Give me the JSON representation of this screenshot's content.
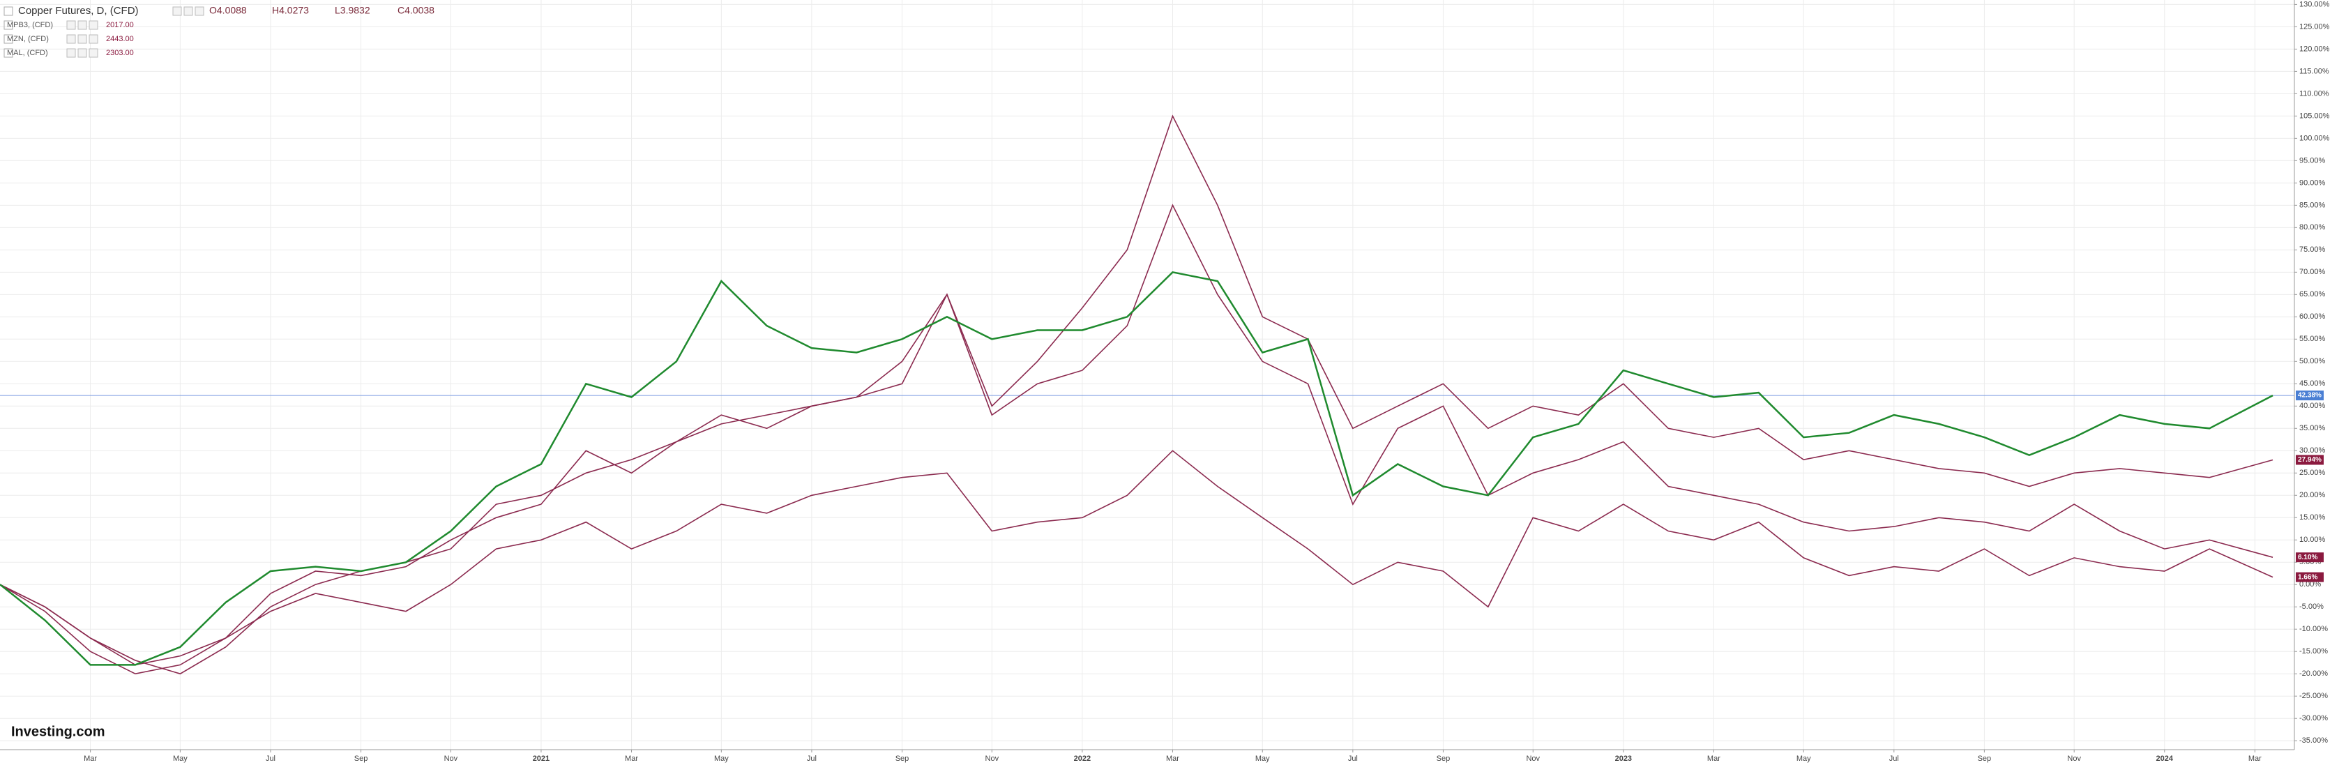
{
  "chart_data": {
    "type": "line",
    "logo": "Investing.com",
    "grid": true,
    "x": [
      2020,
      2020.083,
      2020.167,
      2020.25,
      2020.333,
      2020.417,
      2020.5,
      2020.583,
      2020.667,
      2020.75,
      2020.833,
      2020.917,
      2021,
      2021.083,
      2021.167,
      2021.25,
      2021.333,
      2021.417,
      2021.5,
      2021.583,
      2021.667,
      2021.75,
      2021.833,
      2021.917,
      2022,
      2022.083,
      2022.167,
      2022.25,
      2022.333,
      2022.417,
      2022.5,
      2022.583,
      2022.667,
      2022.75,
      2022.833,
      2022.917,
      2023,
      2023.083,
      2023.167,
      2023.25,
      2023.333,
      2023.417,
      2023.5,
      2023.583,
      2023.667,
      2023.75,
      2023.833,
      2023.917,
      2024,
      2024.083,
      2024.2
    ],
    "xlim": [
      2020,
      2024.24
    ],
    "xticks": [
      {
        "value": 2020.167,
        "label": "Mar"
      },
      {
        "value": 2020.333,
        "label": "May"
      },
      {
        "value": 2020.5,
        "label": "Jul"
      },
      {
        "value": 2020.667,
        "label": "Sep"
      },
      {
        "value": 2020.833,
        "label": "Nov"
      },
      2021,
      {
        "value": 2021.167,
        "label": "Mar"
      },
      {
        "value": 2021.333,
        "label": "May"
      },
      {
        "value": 2021.5,
        "label": "Jul"
      },
      {
        "value": 2021.667,
        "label": "Sep"
      },
      {
        "value": 2021.833,
        "label": "Nov"
      },
      2022,
      {
        "value": 2022.167,
        "label": "Mar"
      },
      {
        "value": 2022.333,
        "label": "May"
      },
      {
        "value": 2022.5,
        "label": "Jul"
      },
      {
        "value": 2022.667,
        "label": "Sep"
      },
      {
        "value": 2022.833,
        "label": "Nov"
      },
      2023,
      {
        "value": 2023.167,
        "label": "Mar"
      },
      {
        "value": 2023.333,
        "label": "May"
      },
      {
        "value": 2023.5,
        "label": "Jul"
      },
      {
        "value": 2023.667,
        "label": "Sep"
      },
      {
        "value": 2023.833,
        "label": "Nov"
      },
      2024,
      {
        "value": 2024.167,
        "label": "Mar"
      }
    ],
    "ylim": [
      -37,
      131
    ],
    "yticks": [
      {
        "value": 130,
        "label": "130.00%"
      },
      {
        "value": 125,
        "label": "125.00%"
      },
      {
        "value": 120,
        "label": "120.00%"
      },
      {
        "value": 115,
        "label": "115.00%"
      },
      {
        "value": 110,
        "label": "110.00%"
      },
      {
        "value": 105,
        "label": "105.00%"
      },
      {
        "value": 100,
        "label": "100.00%"
      },
      {
        "value": 95,
        "label": "95.00%"
      },
      {
        "value": 90,
        "label": "90.00%"
      },
      {
        "value": 85,
        "label": "85.00%"
      },
      {
        "value": 80,
        "label": "80.00%"
      },
      {
        "value": 75,
        "label": "75.00%"
      },
      {
        "value": 70,
        "label": "70.00%"
      },
      {
        "value": 65,
        "label": "65.00%"
      },
      {
        "value": 60,
        "label": "60.00%"
      },
      {
        "value": 55,
        "label": "55.00%"
      },
      {
        "value": 50,
        "label": "50.00%"
      },
      {
        "value": 45,
        "label": "45.00%"
      },
      {
        "value": 40,
        "label": "40.00%"
      },
      {
        "value": 35,
        "label": "35.00%"
      },
      {
        "value": 30,
        "label": "30.00%"
      },
      {
        "value": 25,
        "label": "25.00%"
      },
      {
        "value": 20,
        "label": "20.00%"
      },
      {
        "value": 15,
        "label": "15.00%"
      },
      {
        "value": 10,
        "label": "10.00%"
      },
      {
        "value": 5,
        "label": "5.00%"
      },
      {
        "value": 0,
        "label": "0.00%"
      },
      {
        "value": -5,
        "label": "-5.00%"
      },
      {
        "value": -10,
        "label": "-10.00%"
      },
      {
        "value": -15,
        "label": "-15.00%"
      },
      {
        "value": -20,
        "label": "-20.00%"
      },
      {
        "value": -25,
        "label": "-25.00%"
      },
      {
        "value": -30,
        "label": "-30.00%"
      },
      {
        "value": -35,
        "label": "-35.00%"
      }
    ],
    "series": [
      {
        "name": "Copper Futures, D, (CFD)",
        "color": "#1f8a2e",
        "end_color": "#4a7fd4",
        "legend_values": [
          "O4.0088",
          "H4.0273",
          "L3.9832",
          "C4.0038"
        ],
        "end_label": "42.38%",
        "values": [
          0,
          -8,
          -18,
          -18,
          -14,
          -4,
          3,
          4,
          3,
          5,
          12,
          22,
          27,
          45,
          42,
          50,
          68,
          58,
          53,
          52,
          55,
          60,
          55,
          57,
          57,
          60,
          70,
          68,
          52,
          55,
          20,
          27,
          22,
          20,
          33,
          36,
          48,
          45,
          42,
          43,
          33,
          34,
          38,
          36,
          33,
          29,
          33,
          38,
          36,
          35,
          42.38
        ]
      },
      {
        "name": "MPB3, (CFD)",
        "color": "#8b2a4f",
        "end_color": "#8b1a3f",
        "legend_values": [
          "2017.00"
        ],
        "end_label": "27.94%",
        "values": [
          0,
          -5,
          -12,
          -17,
          -20,
          -14,
          -5,
          0,
          3,
          5,
          8,
          18,
          20,
          25,
          28,
          32,
          36,
          38,
          40,
          42,
          45,
          65,
          40,
          50,
          62,
          75,
          105,
          85,
          60,
          55,
          35,
          40,
          45,
          35,
          40,
          38,
          45,
          35,
          33,
          35,
          28,
          30,
          28,
          26,
          25,
          22,
          25,
          26,
          25,
          24,
          27.94
        ]
      },
      {
        "name": "MZN, (CFD)",
        "color": "#8b2a4f",
        "end_color": "#8b1a3f",
        "legend_values": [
          "2443.00"
        ],
        "end_label": "6.10%",
        "values": [
          0,
          -6,
          -15,
          -20,
          -18,
          -12,
          -2,
          3,
          2,
          4,
          10,
          15,
          18,
          30,
          25,
          32,
          38,
          35,
          40,
          42,
          50,
          65,
          38,
          45,
          48,
          58,
          85,
          65,
          50,
          45,
          18,
          35,
          40,
          20,
          25,
          28,
          32,
          22,
          20,
          18,
          14,
          12,
          13,
          15,
          14,
          12,
          18,
          12,
          8,
          10,
          6.1
        ]
      },
      {
        "name": "MAL, (CFD)",
        "color": "#8b2a4f",
        "end_color": "#8b1a3f",
        "legend_values": [
          "2303.00"
        ],
        "end_label": "1.66%",
        "values": [
          0,
          -5,
          -12,
          -18,
          -16,
          -12,
          -6,
          -2,
          -4,
          -6,
          0,
          8,
          10,
          14,
          8,
          12,
          18,
          16,
          20,
          22,
          24,
          25,
          12,
          14,
          15,
          20,
          30,
          22,
          15,
          8,
          0,
          5,
          3,
          -5,
          15,
          12,
          18,
          12,
          10,
          14,
          6,
          2,
          4,
          3,
          8,
          2,
          6,
          4,
          3,
          8,
          1.66
        ]
      }
    ]
  }
}
